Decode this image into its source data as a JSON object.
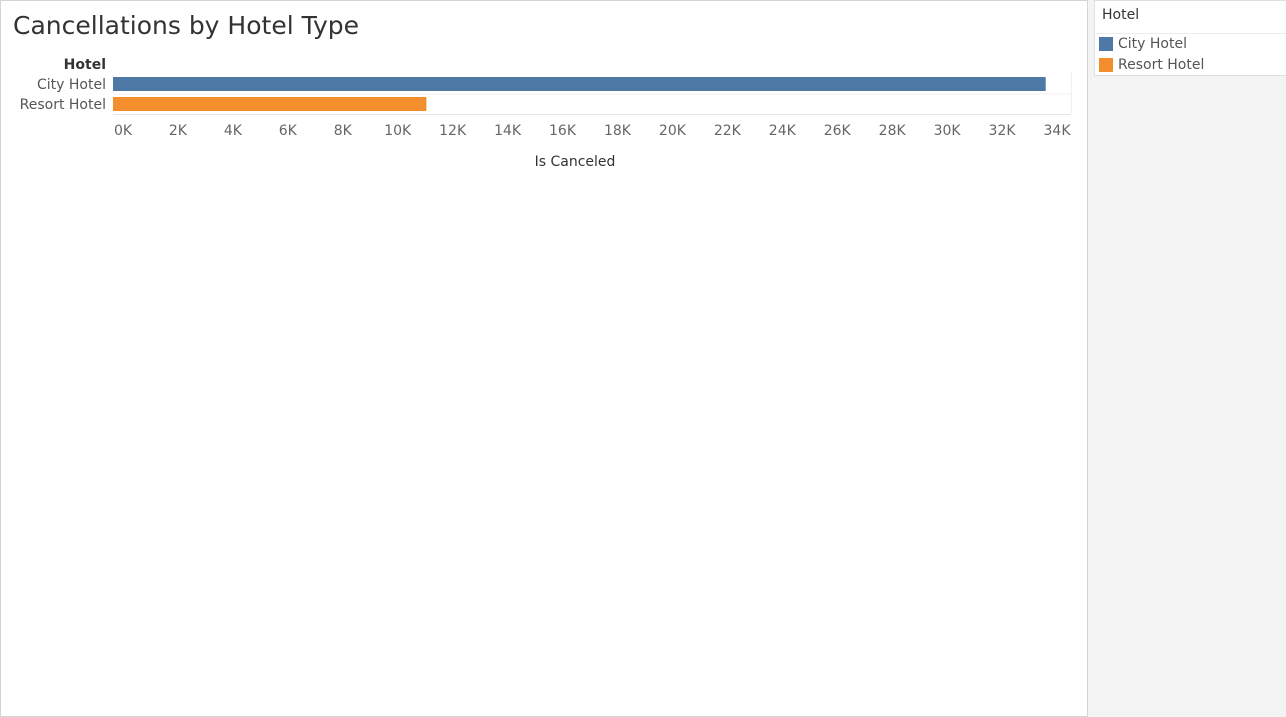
{
  "worksheet": {
    "title": "Cancellations by Hotel Type"
  },
  "legend": {
    "title": "Hotel",
    "items": [
      {
        "label": "City Hotel",
        "color": "#4e79a7"
      },
      {
        "label": "Resort Hotel",
        "color": "#f28e2b"
      }
    ]
  },
  "chart_data": {
    "type": "bar",
    "orientation": "horizontal",
    "title": "Cancellations by Hotel Type",
    "category_header": "Hotel",
    "categories": [
      "City Hotel",
      "Resort Hotel"
    ],
    "values": [
      33102,
      11122
    ],
    "colors": [
      "#4e79a7",
      "#f28e2b"
    ],
    "xlabel": "Is Canceled",
    "ylabel": "",
    "xlim": [
      0,
      34000
    ],
    "xticks": [
      0,
      2000,
      4000,
      6000,
      8000,
      10000,
      12000,
      14000,
      16000,
      18000,
      20000,
      22000,
      24000,
      26000,
      28000,
      30000,
      32000,
      34000
    ],
    "xtick_labels": [
      "0K",
      "2K",
      "4K",
      "6K",
      "8K",
      "10K",
      "12K",
      "14K",
      "16K",
      "18K",
      "20K",
      "22K",
      "24K",
      "26K",
      "28K",
      "30K",
      "32K",
      "34K"
    ],
    "grid": false,
    "legend_position": "right"
  }
}
